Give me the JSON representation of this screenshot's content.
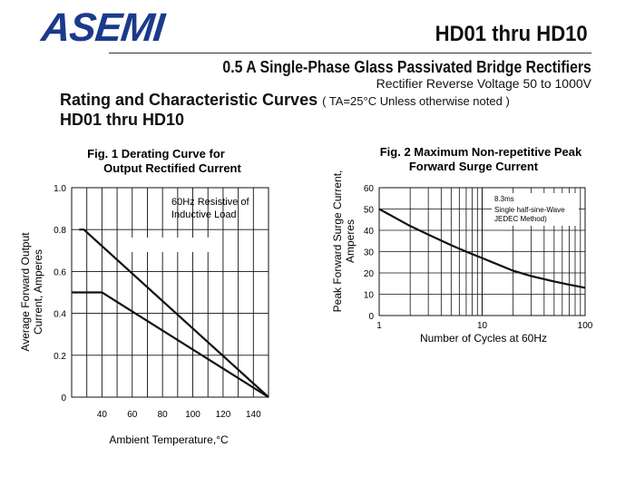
{
  "header": {
    "logo": "ASEMI",
    "part_title": "HD01 thru HD10",
    "subtitle": "0.5  A Single-Phase Glass Passivated Bridge Rectifiers",
    "voltage": "Rectifier Reverse Voltage 50 to 1000V"
  },
  "section": {
    "heading": "Rating and Characteristic Curves",
    "note": "( TA=25°C Unless otherwise noted )",
    "sub": "HD01 thru HD10"
  },
  "colors": {
    "logo": "#1c3a8c",
    "ink": "#111111"
  },
  "chart_data": [
    {
      "type": "line",
      "title_lines": [
        "Fig. 1 Derating Curve for",
        "Output Rectified Current"
      ],
      "xlabel": "Ambient Temperature,°C",
      "ylabel_lines": [
        "Average Forward Output",
        "Current, Amperes"
      ],
      "xlim": [
        20,
        150
      ],
      "ylim": [
        0,
        1.0
      ],
      "x_ticks": [
        40,
        60,
        80,
        100,
        120,
        140
      ],
      "y_ticks": [
        0,
        0.2,
        0.4,
        0.6,
        0.8,
        1.0
      ],
      "y_tick_labels": [
        "0",
        "0.2",
        "0.4",
        "0.6",
        "0.8",
        "1.0"
      ],
      "grid": true,
      "annotation_lines": [
        "60Hz Resistive of",
        "Inductive Load"
      ],
      "series": [
        {
          "x": [
            28,
            150
          ],
          "y": [
            0.8,
            0
          ],
          "x_pre": [
            25
          ],
          "y_pre": [
            0.8
          ]
        },
        {
          "x": [
            40,
            150
          ],
          "y": [
            0.5,
            0
          ],
          "x_pre": [
            20
          ],
          "y_pre": [
            0.5
          ]
        }
      ]
    },
    {
      "type": "line",
      "title_lines": [
        "Fig. 2 Maximum Non-repetitive Peak",
        "Forward Surge Current"
      ],
      "xlabel": "Number of Cycles at 60Hz",
      "ylabel_lines": [
        "Peak Forward Surge Current,",
        "Amperes"
      ],
      "xscale": "log",
      "xlim": [
        1,
        100
      ],
      "ylim": [
        0,
        60
      ],
      "x_ticks": [
        1,
        10,
        100
      ],
      "y_ticks": [
        0,
        10,
        20,
        30,
        40,
        50,
        60
      ],
      "grid": true,
      "annotation_lines": [
        "8.3ms",
        "Single half-sine-Wave",
        "JEDEC Method)"
      ],
      "series": [
        {
          "x": [
            1,
            2,
            3,
            5,
            7,
            10,
            15,
            20,
            30,
            50,
            70,
            100
          ],
          "y": [
            50,
            42,
            38,
            33,
            30,
            27,
            23.5,
            21,
            18.5,
            16,
            14.5,
            13
          ]
        }
      ]
    }
  ]
}
